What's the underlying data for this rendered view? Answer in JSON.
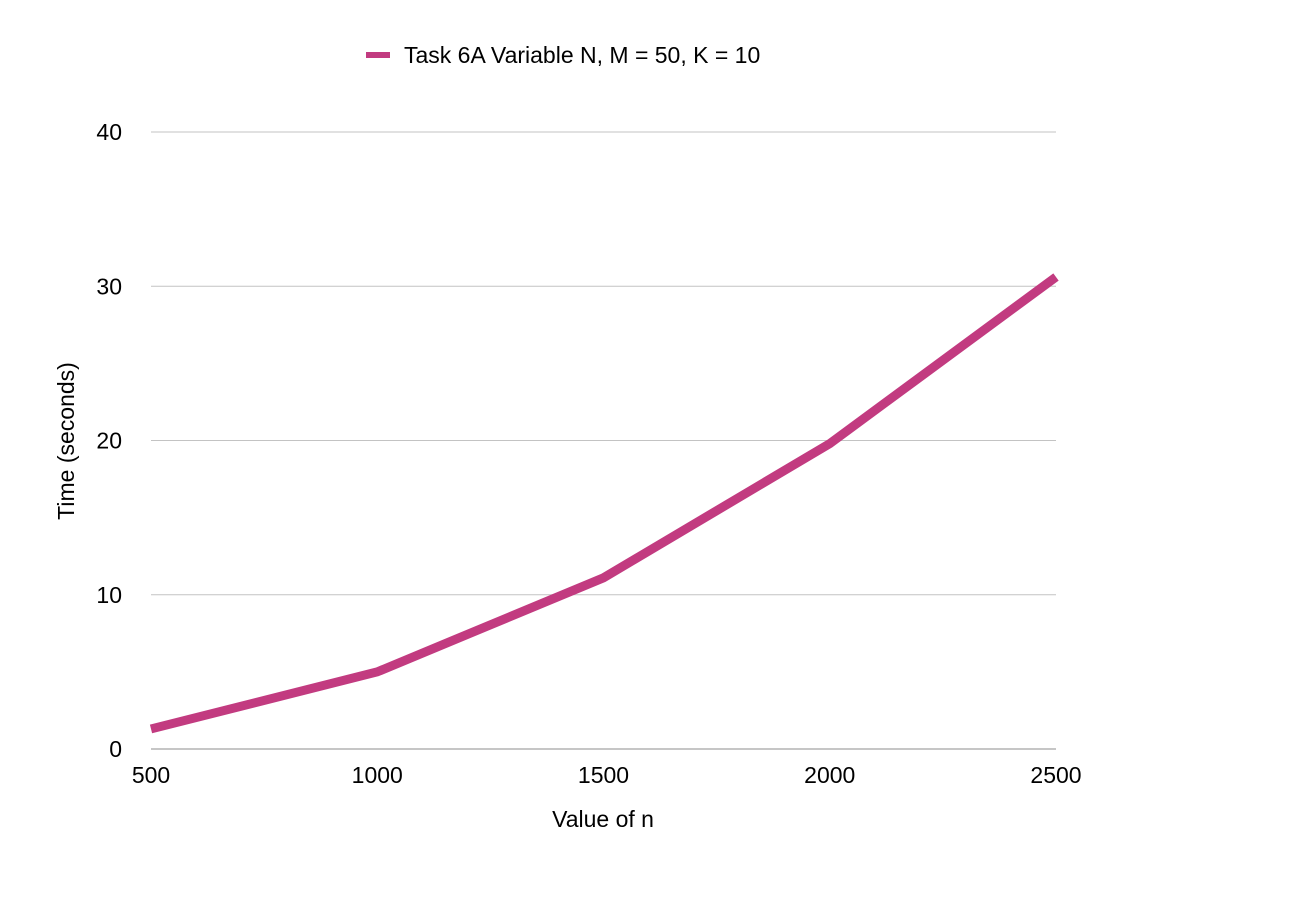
{
  "chart_data": {
    "type": "line",
    "title": "",
    "xlabel": "Value of n",
    "ylabel": "Time (seconds)",
    "x": [
      500,
      1000,
      1500,
      2000,
      2500
    ],
    "x_ticks": [
      "500",
      "1000",
      "1500",
      "2000",
      "2500"
    ],
    "y_ticks": [
      "0",
      "10",
      "20",
      "30",
      "40"
    ],
    "xlim": [
      500,
      2500
    ],
    "ylim": [
      0,
      40
    ],
    "grid": "horizontal",
    "legend_position": "top",
    "series": [
      {
        "name": "Task 6A Variable N, M = 50, K = 10",
        "color": "#c23b80",
        "values": [
          1.3,
          5.0,
          11.1,
          19.8,
          30.6
        ]
      }
    ]
  }
}
